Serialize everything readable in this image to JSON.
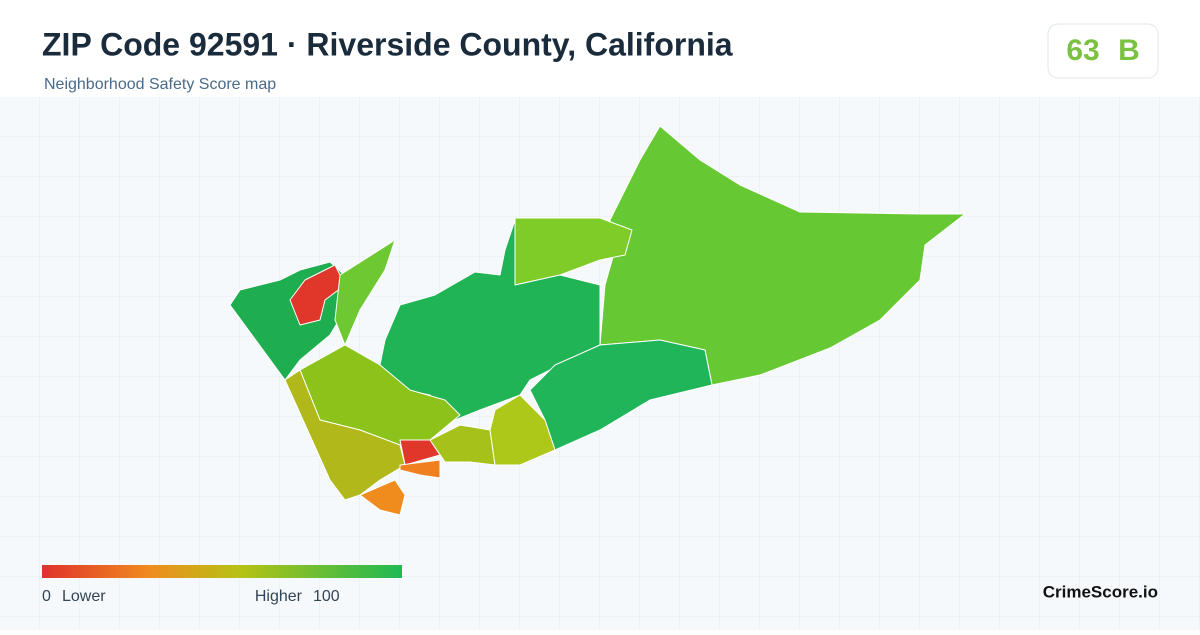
{
  "header": {
    "title": "ZIP Code 92591 · Riverside County, California",
    "subtitle": "Neighborhood Safety Score map"
  },
  "badge": {
    "score": 63,
    "grade": "B"
  },
  "legend": {
    "min": 0,
    "min_label": "Lower",
    "max_label": "Higher",
    "max": 100
  },
  "brand": "CrimeScore.io"
}
